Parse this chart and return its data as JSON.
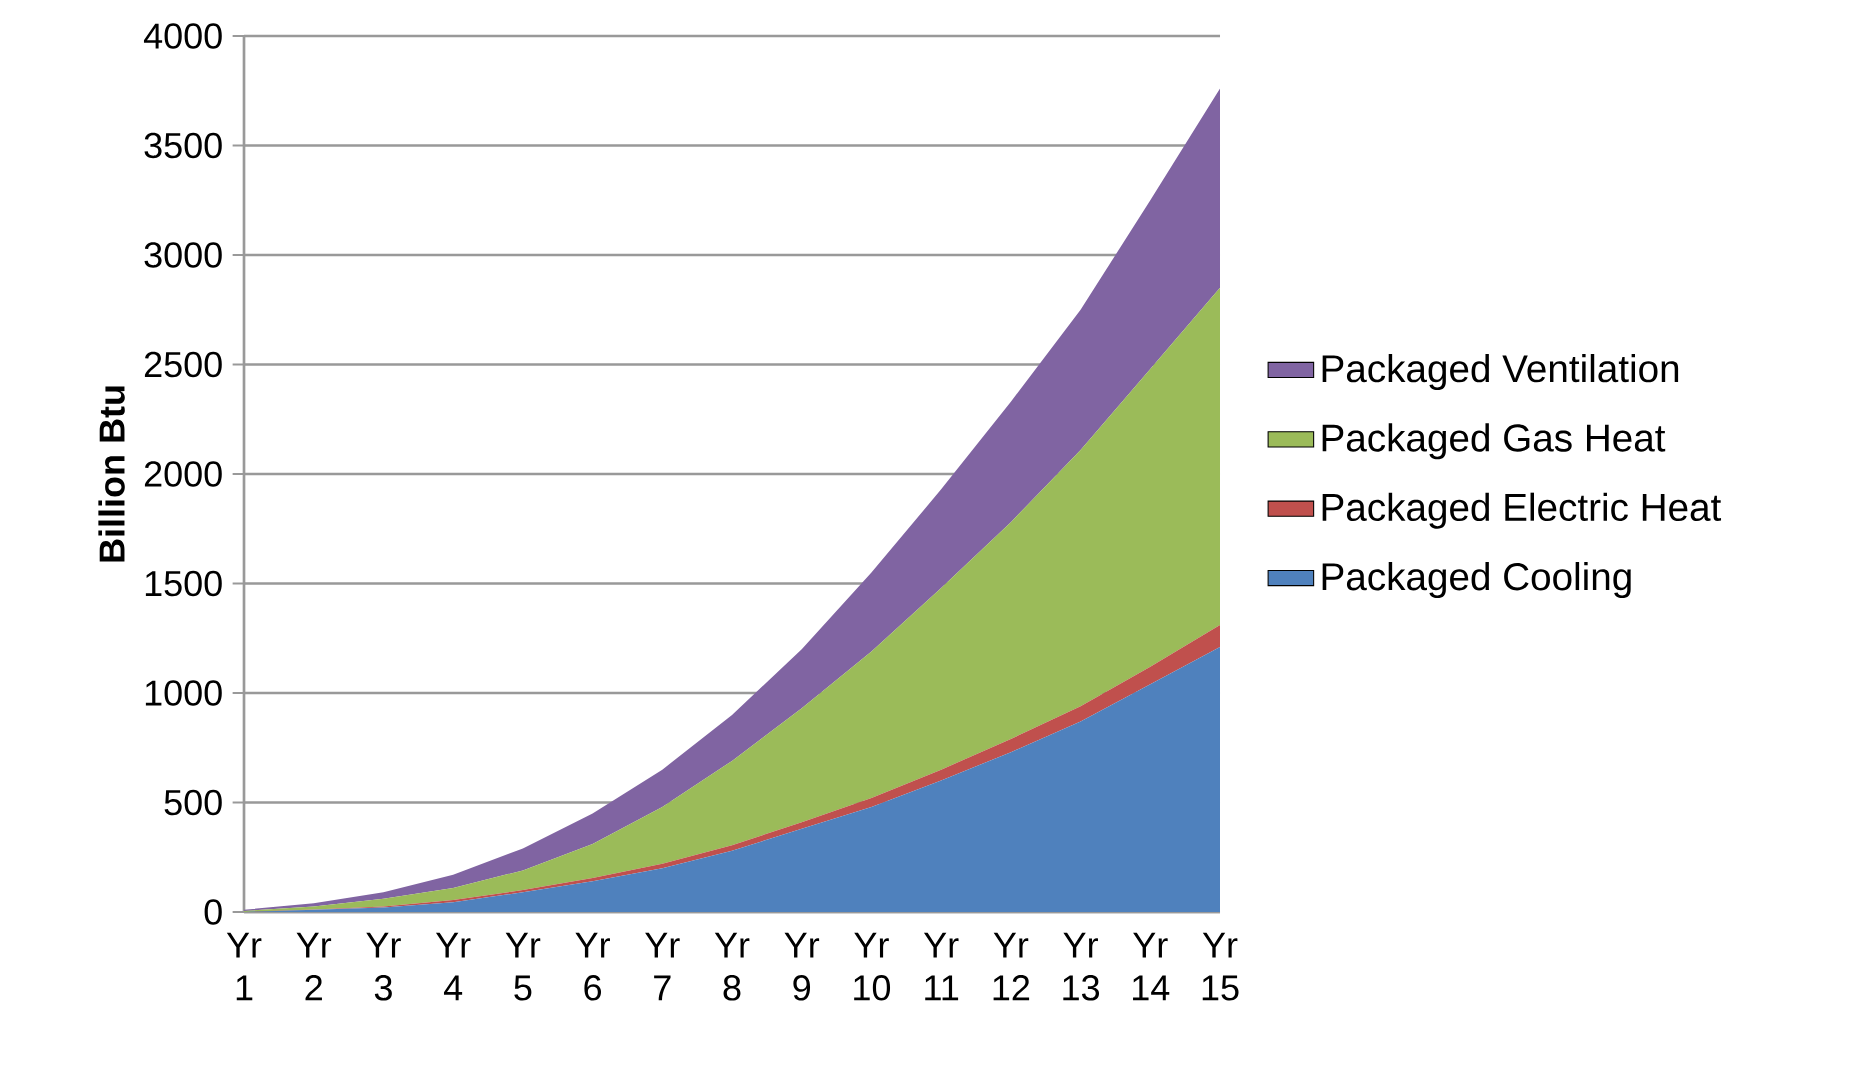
{
  "chart_data": {
    "type": "area",
    "stacked": true,
    "ylabel": "Billion Btu",
    "categories": [
      "Yr 1",
      "Yr 2",
      "Yr 3",
      "Yr 4",
      "Yr 5",
      "Yr 6",
      "Yr 7",
      "Yr 8",
      "Yr 9",
      "Yr 10",
      "Yr 11",
      "Yr 12",
      "Yr 13",
      "Yr 14",
      "Yr 15"
    ],
    "series": [
      {
        "name": "Packaged Cooling",
        "color": "#4f81bd",
        "values": [
          0,
          10,
          20,
          45,
          90,
          140,
          200,
          280,
          380,
          480,
          600,
          730,
          870,
          1040,
          1210
        ]
      },
      {
        "name": "Packaged Electric Heat",
        "color": "#c0504d",
        "values": [
          0,
          2,
          5,
          10,
          10,
          15,
          20,
          25,
          30,
          40,
          50,
          60,
          70,
          80,
          100
        ]
      },
      {
        "name": "Packaged Gas Heat",
        "color": "#9bbb59",
        "values": [
          5,
          13,
          35,
          55,
          90,
          155,
          260,
          385,
          520,
          670,
          830,
          990,
          1170,
          1360,
          1540
        ]
      },
      {
        "name": "Packaged Ventilation",
        "color": "#8064a2",
        "values": [
          5,
          15,
          30,
          60,
          100,
          140,
          170,
          210,
          270,
          360,
          450,
          550,
          640,
          770,
          910
        ]
      }
    ],
    "ylim": [
      0,
      4000
    ],
    "yticks": [
      0,
      500,
      1000,
      1500,
      2000,
      2500,
      3000,
      3500,
      4000
    ],
    "grid": "y",
    "legend": "right"
  }
}
